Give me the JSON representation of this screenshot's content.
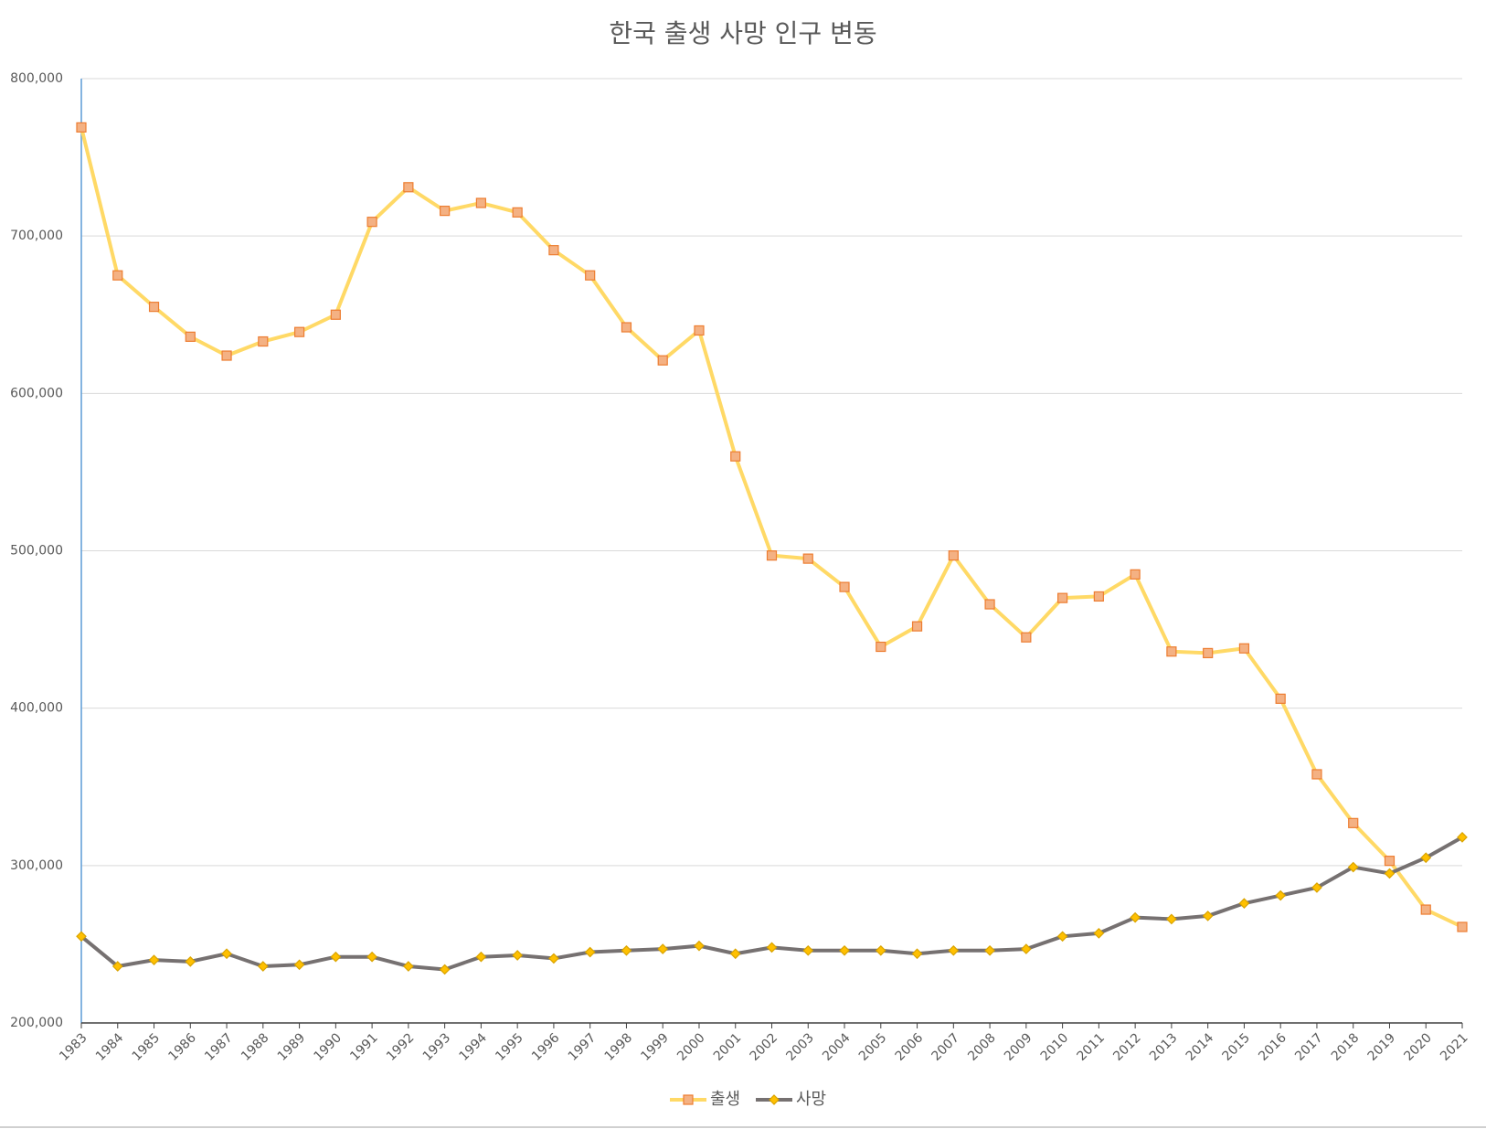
{
  "chart_data": {
    "type": "line",
    "title": "한국 출생 사망 인구 변동",
    "categories": [
      "1983",
      "1984",
      "1985",
      "1986",
      "1987",
      "1988",
      "1989",
      "1990",
      "1991",
      "1992",
      "1993",
      "1994",
      "1995",
      "1996",
      "1997",
      "1998",
      "1999",
      "2000",
      "2001",
      "2002",
      "2003",
      "2004",
      "2005",
      "2006",
      "2007",
      "2008",
      "2009",
      "2010",
      "2011",
      "2012",
      "2013",
      "2014",
      "2015",
      "2016",
      "2017",
      "2018",
      "2019",
      "2020",
      "2021"
    ],
    "series": [
      {
        "name": "출생",
        "color": "#ffd966",
        "marker": "square",
        "marker_color": "#f4b183",
        "marker_stroke": "#ed7d31",
        "values": [
          769000,
          675000,
          655000,
          636000,
          624000,
          633000,
          639000,
          650000,
          709000,
          731000,
          716000,
          721000,
          715000,
          691000,
          675000,
          642000,
          621000,
          640000,
          560000,
          497000,
          495000,
          477000,
          439000,
          452000,
          497000,
          466000,
          445000,
          470000,
          471000,
          485000,
          436000,
          435000,
          438000,
          406000,
          358000,
          327000,
          303000,
          272000,
          261000
        ]
      },
      {
        "name": "사망",
        "color": "#767171",
        "marker": "diamond",
        "marker_color": "#ffc000",
        "marker_stroke": "#d9a300",
        "values": [
          255000,
          236000,
          240000,
          239000,
          244000,
          236000,
          237000,
          242000,
          242000,
          236000,
          234000,
          242000,
          243000,
          241000,
          245000,
          246000,
          247000,
          249000,
          244000,
          248000,
          246000,
          246000,
          246000,
          244000,
          246000,
          246000,
          247000,
          255000,
          257000,
          267000,
          266000,
          268000,
          276000,
          281000,
          286000,
          299000,
          295000,
          305000,
          318000
        ]
      }
    ],
    "ylim": [
      200000,
      800000
    ],
    "yticks": [
      {
        "value": 200000,
        "label": "200,000"
      },
      {
        "value": 300000,
        "label": "300,000"
      },
      {
        "value": 400000,
        "label": "400,000"
      },
      {
        "value": 500000,
        "label": "500,000"
      },
      {
        "value": 600000,
        "label": "600,000"
      },
      {
        "value": 700000,
        "label": "700,000"
      },
      {
        "value": 800000,
        "label": "800,000"
      }
    ],
    "grid": true,
    "legend": "bottom"
  }
}
